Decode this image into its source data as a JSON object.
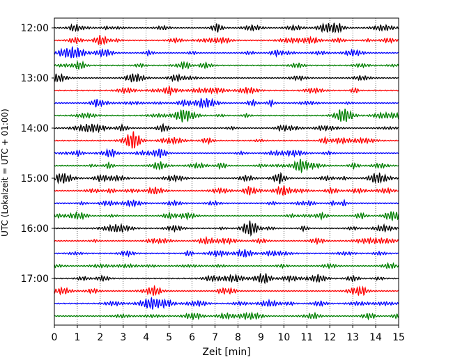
{
  "chart_data": {
    "type": "line",
    "title": "",
    "xlabel": "Zeit  [min]",
    "ylabel": "UTC (Lokalzeit = UTC + 01:00)",
    "xlim": [
      0,
      15
    ],
    "x_ticks": [
      "0",
      "1",
      "2",
      "3",
      "4",
      "5",
      "6",
      "7",
      "8",
      "9",
      "10",
      "11",
      "12",
      "13",
      "14",
      "15"
    ],
    "y_ticks": [
      "12:00",
      "13:00",
      "14:00",
      "15:00",
      "16:00",
      "17:00"
    ],
    "trace_interval_min": 15,
    "trace_count": 24,
    "trace_colors": [
      "#000000",
      "#ff0000",
      "#0000ff",
      "#008000"
    ],
    "vertical_grid": "dotted",
    "series": [
      {
        "offset_minutes": 0,
        "color": "#000000"
      },
      {
        "offset_minutes": 15,
        "color": "#ff0000"
      },
      {
        "offset_minutes": 30,
        "color": "#0000ff"
      },
      {
        "offset_minutes": 45,
        "color": "#008000"
      },
      {
        "offset_minutes": 60,
        "color": "#000000"
      },
      {
        "offset_minutes": 75,
        "color": "#ff0000"
      },
      {
        "offset_minutes": 90,
        "color": "#0000ff"
      },
      {
        "offset_minutes": 105,
        "color": "#008000"
      },
      {
        "offset_minutes": 120,
        "color": "#000000"
      },
      {
        "offset_minutes": 135,
        "color": "#ff0000"
      },
      {
        "offset_minutes": 150,
        "color": "#0000ff"
      },
      {
        "offset_minutes": 165,
        "color": "#008000"
      },
      {
        "offset_minutes": 180,
        "color": "#000000"
      },
      {
        "offset_minutes": 195,
        "color": "#ff0000"
      },
      {
        "offset_minutes": 210,
        "color": "#0000ff"
      },
      {
        "offset_minutes": 225,
        "color": "#008000"
      },
      {
        "offset_minutes": 240,
        "color": "#000000"
      },
      {
        "offset_minutes": 255,
        "color": "#ff0000"
      },
      {
        "offset_minutes": 270,
        "color": "#0000ff"
      },
      {
        "offset_minutes": 285,
        "color": "#008000"
      },
      {
        "offset_minutes": 300,
        "color": "#000000"
      },
      {
        "offset_minutes": 315,
        "color": "#ff0000"
      },
      {
        "offset_minutes": 330,
        "color": "#0000ff"
      },
      {
        "offset_minutes": 345,
        "color": "#008000"
      }
    ]
  }
}
